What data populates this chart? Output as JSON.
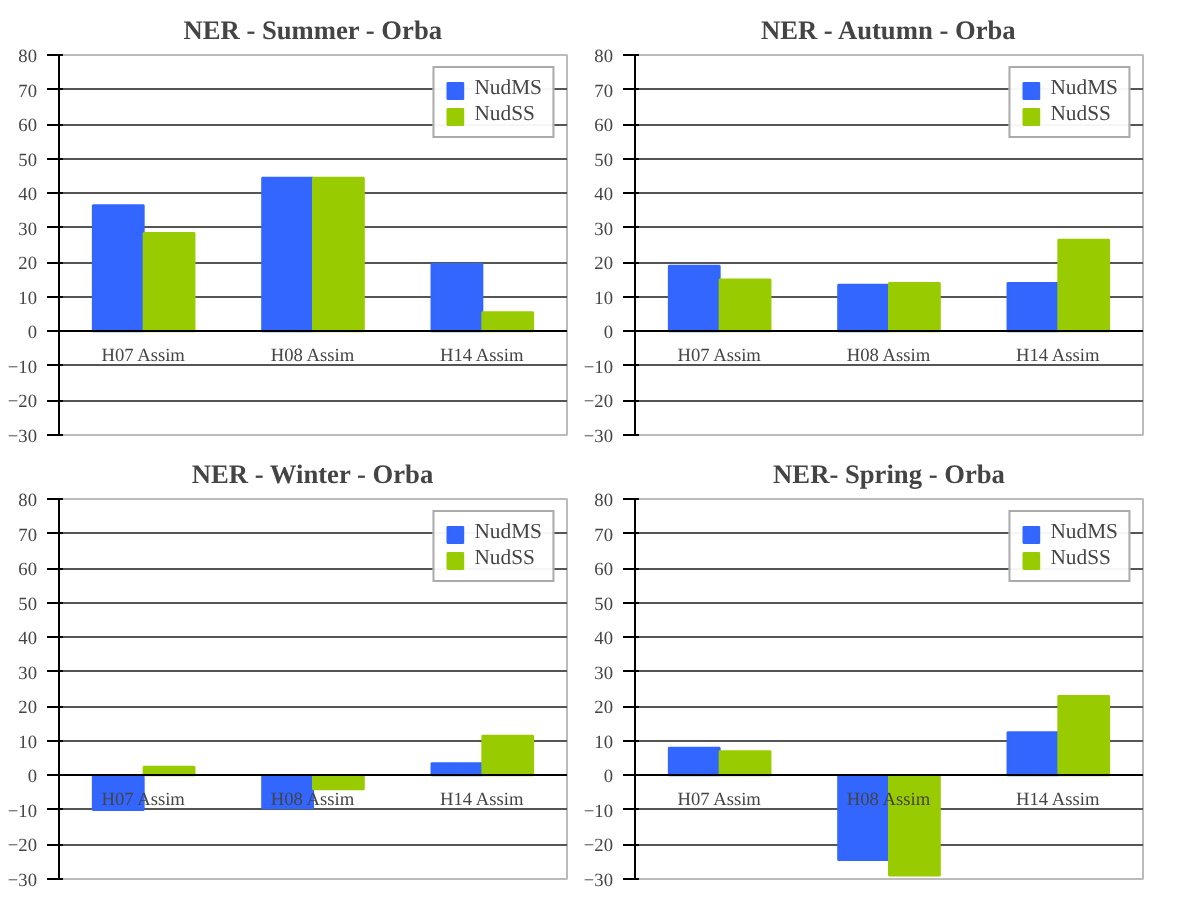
{
  "chart_data": [
    {
      "type": "bar",
      "title": "NER - Summer - Orba",
      "categories": [
        "H07 Assim",
        "H08 Assim",
        "H14 Assim"
      ],
      "ylim": [
        -30,
        80
      ],
      "yticks": [
        -30,
        -20,
        -10,
        0,
        10,
        20,
        30,
        40,
        50,
        60,
        70,
        80
      ],
      "grid": "y",
      "legend": "top right",
      "series": [
        {
          "name": "NudMS",
          "color": "#3366ff",
          "values": [
            36.5,
            44.5,
            19.5
          ]
        },
        {
          "name": "NudSS",
          "color": "#99cc00",
          "values": [
            28.5,
            44.5,
            5.5
          ]
        }
      ]
    },
    {
      "type": "bar",
      "title": "NER - Autumn - Orba",
      "categories": [
        "H07 Assim",
        "H08 Assim",
        "H14 Assim"
      ],
      "ylim": [
        -30,
        80
      ],
      "yticks": [
        -30,
        -20,
        -10,
        0,
        10,
        20,
        30,
        40,
        50,
        60,
        70,
        80
      ],
      "grid": "y",
      "legend": "top right",
      "series": [
        {
          "name": "NudMS",
          "color": "#3366ff",
          "values": [
            19,
            13.5,
            14
          ]
        },
        {
          "name": "NudSS",
          "color": "#99cc00",
          "values": [
            15,
            14,
            26.5
          ]
        }
      ]
    },
    {
      "type": "bar",
      "title": "NER - Winter - Orba",
      "categories": [
        "H07 Assim",
        "H08 Assim",
        "H14 Assim"
      ],
      "ylim": [
        -30,
        80
      ],
      "yticks": [
        -30,
        -20,
        -10,
        0,
        10,
        20,
        30,
        40,
        50,
        60,
        70,
        80
      ],
      "grid": "y",
      "legend": "top right",
      "series": [
        {
          "name": "NudMS",
          "color": "#3366ff",
          "values": [
            -10,
            -9.5,
            3.5
          ]
        },
        {
          "name": "NudSS",
          "color": "#99cc00",
          "values": [
            2.5,
            -4,
            11.5
          ]
        }
      ]
    },
    {
      "type": "bar",
      "title": "NER- Spring - Orba",
      "categories": [
        "H07 Assim",
        "H08 Assim",
        "H14 Assim"
      ],
      "ylim": [
        -30,
        80
      ],
      "yticks": [
        -30,
        -20,
        -10,
        0,
        10,
        20,
        30,
        40,
        50,
        60,
        70,
        80
      ],
      "grid": "y",
      "legend": "top right",
      "series": [
        {
          "name": "NudMS",
          "color": "#3366ff",
          "values": [
            8,
            -24.5,
            12.5
          ]
        },
        {
          "name": "NudSS",
          "color": "#99cc00",
          "values": [
            7,
            -29,
            23
          ]
        }
      ]
    }
  ]
}
